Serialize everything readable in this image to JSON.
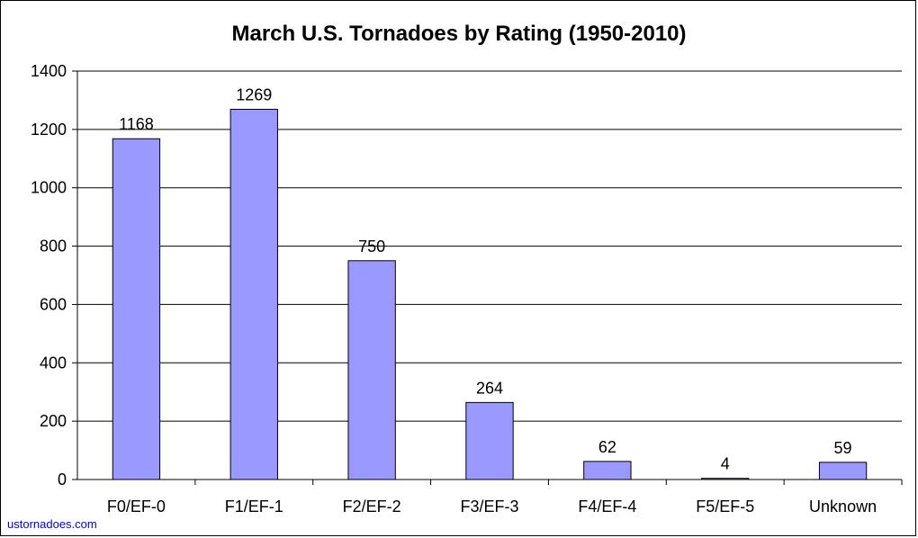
{
  "chart_data": {
    "type": "bar",
    "title": "March U.S. Tornadoes by Rating (1950-2010)",
    "categories": [
      "F0/EF-0",
      "F1/EF-1",
      "F2/EF-2",
      "F3/EF-3",
      "F4/EF-4",
      "F5/EF-5",
      "Unknown"
    ],
    "values": [
      1168,
      1269,
      750,
      264,
      62,
      4,
      59
    ],
    "data_labels": [
      "1168",
      "1269",
      "750",
      "264",
      "62",
      "4",
      "59"
    ],
    "ylim": [
      0,
      1400
    ],
    "yticks": [
      0,
      200,
      400,
      600,
      800,
      1000,
      1200,
      1400
    ],
    "grid": true,
    "legend": "none",
    "xlabel": "",
    "ylabel": "",
    "bar_color": "#9999ff",
    "bar_border": "#000000"
  },
  "credit": "ustornadoes.com"
}
